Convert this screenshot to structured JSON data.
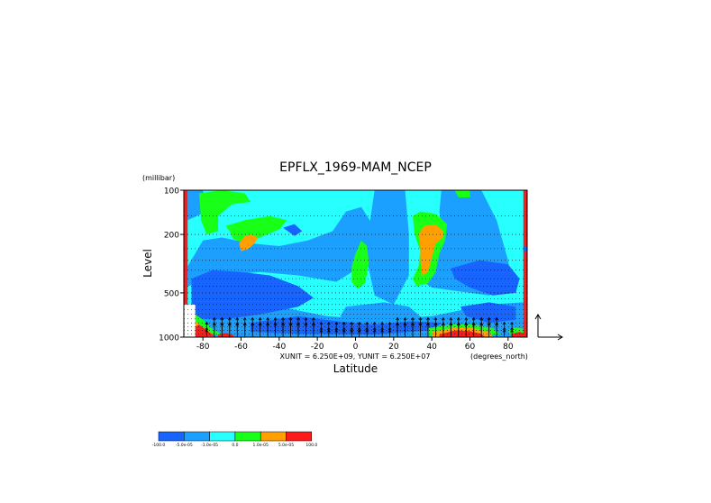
{
  "chart_data": {
    "type": "heatmap",
    "title": "EPFLX_1969-MAM_NCEP",
    "xlabel": "Latitude",
    "ylabel": "Level",
    "x_units": "(degrees_north)",
    "y_units": "(millibar)",
    "xlim": [
      -90,
      90
    ],
    "ylim": [
      1000,
      100
    ],
    "y_scale": "log",
    "x_ticks": [
      -80,
      -60,
      -40,
      -20,
      0,
      20,
      40,
      60,
      80
    ],
    "y_ticks": [
      100,
      200,
      500,
      1000
    ],
    "vector_scale_text": "XUNIT = 6.250E+09, YUNIT = 6.250E+07",
    "colorbar": {
      "colors": [
        "#1864ff",
        "#1ca0ff",
        "#28ffff",
        "#18ff18",
        "#ffa000",
        "#ff1a1a"
      ],
      "labels": [
        "-100.0",
        "-5.0e-05",
        "-1.0e-05",
        "0.0",
        "1.0e-05",
        "5.0e-05",
        "100.0"
      ]
    },
    "background_color": "#28ffff",
    "regions": [
      {
        "fill": "#1ca0ff",
        "points": [
          [
            -88,
            330
          ],
          [
            -80,
            220
          ],
          [
            -70,
            210
          ],
          [
            -55,
            230
          ],
          [
            -40,
            240
          ],
          [
            -25,
            220
          ],
          [
            -12,
            190
          ],
          [
            -5,
            140
          ],
          [
            3,
            130
          ],
          [
            10,
            180
          ],
          [
            8,
            300
          ],
          [
            -10,
            420
          ],
          [
            -30,
            380
          ],
          [
            -50,
            360
          ],
          [
            -70,
            380
          ],
          [
            -88,
            450
          ]
        ]
      },
      {
        "fill": "#1ca0ff",
        "points": [
          [
            -88,
            100
          ],
          [
            -80,
            100
          ],
          [
            -78,
            140
          ],
          [
            -88,
            160
          ]
        ]
      },
      {
        "fill": "#1ca0ff",
        "points": [
          [
            10,
            100
          ],
          [
            26,
            100
          ],
          [
            28,
            200
          ],
          [
            28,
            380
          ],
          [
            20,
            600
          ],
          [
            10,
            520
          ],
          [
            6,
            300
          ],
          [
            8,
            150
          ]
        ]
      },
      {
        "fill": "#1ca0ff",
        "points": [
          [
            45,
            100
          ],
          [
            66,
            100
          ],
          [
            74,
            160
          ],
          [
            80,
            300
          ],
          [
            82,
            440
          ],
          [
            70,
            520
          ],
          [
            40,
            460
          ],
          [
            33,
            400
          ],
          [
            38,
            300
          ],
          [
            46,
            220
          ],
          [
            44,
            140
          ]
        ]
      },
      {
        "fill": "#1ca0ff",
        "points": [
          [
            -5,
            620
          ],
          [
            15,
            580
          ],
          [
            28,
            620
          ],
          [
            36,
            760
          ],
          [
            20,
            900
          ],
          [
            0,
            860
          ],
          [
            -8,
            720
          ]
        ]
      },
      {
        "fill": "#1ca0ff",
        "points": [
          [
            -85,
            600
          ],
          [
            -60,
            580
          ],
          [
            -35,
            640
          ],
          [
            -15,
            720
          ],
          [
            10,
            760
          ],
          [
            40,
            720
          ],
          [
            70,
            600
          ],
          [
            88,
            580
          ],
          [
            88,
            1000
          ],
          [
            -85,
            1000
          ]
        ]
      },
      {
        "fill": "#1864ff",
        "points": [
          [
            -86,
            400
          ],
          [
            -75,
            350
          ],
          [
            -60,
            360
          ],
          [
            -45,
            380
          ],
          [
            -30,
            450
          ],
          [
            -22,
            540
          ],
          [
            -30,
            620
          ],
          [
            -50,
            700
          ],
          [
            -70,
            760
          ],
          [
            -86,
            740
          ]
        ]
      },
      {
        "fill": "#1864ff",
        "points": [
          [
            -55,
            800
          ],
          [
            -30,
            720
          ],
          [
            -10,
            780
          ],
          [
            10,
            820
          ],
          [
            30,
            780
          ],
          [
            45,
            800
          ],
          [
            40,
            900
          ],
          [
            10,
            960
          ],
          [
            -30,
            950
          ],
          [
            -55,
            920
          ]
        ]
      },
      {
        "fill": "#1864ff",
        "points": [
          [
            50,
            340
          ],
          [
            65,
            300
          ],
          [
            80,
            320
          ],
          [
            86,
            400
          ],
          [
            84,
            500
          ],
          [
            72,
            520
          ],
          [
            60,
            460
          ],
          [
            52,
            400
          ]
        ]
      },
      {
        "fill": "#1864ff",
        "points": [
          [
            55,
            620
          ],
          [
            70,
            580
          ],
          [
            84,
            620
          ],
          [
            84,
            760
          ],
          [
            70,
            800
          ],
          [
            58,
            720
          ]
        ]
      },
      {
        "fill": "#1864ff",
        "points": [
          [
            -38,
            180
          ],
          [
            -32,
            170
          ],
          [
            -28,
            190
          ],
          [
            -32,
            205
          ]
        ]
      },
      {
        "fill": "#18ff18",
        "points": [
          [
            -82,
            105
          ],
          [
            -70,
            100
          ],
          [
            -58,
            105
          ],
          [
            -55,
            120
          ],
          [
            -65,
            125
          ],
          [
            -72,
            150
          ],
          [
            -72,
            190
          ],
          [
            -78,
            200
          ],
          [
            -81,
            160
          ]
        ]
      },
      {
        "fill": "#18ff18",
        "points": [
          [
            -68,
            175
          ],
          [
            -58,
            160
          ],
          [
            -45,
            150
          ],
          [
            -36,
            160
          ],
          [
            -40,
            185
          ],
          [
            -50,
            210
          ],
          [
            -58,
            230
          ],
          [
            -64,
            215
          ],
          [
            -66,
            190
          ]
        ]
      },
      {
        "fill": "#18ff18",
        "points": [
          [
            0,
            270
          ],
          [
            3,
            220
          ],
          [
            6,
            240
          ],
          [
            7,
            310
          ],
          [
            5,
            430
          ],
          [
            1,
            470
          ],
          [
            -2,
            420
          ],
          [
            -2,
            330
          ]
        ]
      },
      {
        "fill": "#18ff18",
        "points": [
          [
            30,
            150
          ],
          [
            34,
            140
          ],
          [
            42,
            145
          ],
          [
            48,
            170
          ],
          [
            47,
            220
          ],
          [
            44,
            270
          ],
          [
            42,
            360
          ],
          [
            38,
            430
          ],
          [
            32,
            450
          ],
          [
            30,
            400
          ],
          [
            33,
            330
          ],
          [
            34,
            260
          ],
          [
            31,
            200
          ]
        ]
      },
      {
        "fill": "#18ff18",
        "points": [
          [
            52,
            100
          ],
          [
            60,
            100
          ],
          [
            60,
            112
          ],
          [
            54,
            112
          ]
        ]
      },
      {
        "fill": "#18ff18",
        "points": [
          [
            -88,
            720
          ],
          [
            -84,
            700
          ],
          [
            -80,
            760
          ],
          [
            -76,
            860
          ],
          [
            -70,
            960
          ],
          [
            -88,
            1000
          ]
        ]
      },
      {
        "fill": "#18ff18",
        "points": [
          [
            38,
            870
          ],
          [
            50,
            820
          ],
          [
            62,
            820
          ],
          [
            72,
            870
          ],
          [
            76,
            960
          ],
          [
            38,
            980
          ]
        ]
      },
      {
        "fill": "#18ff18",
        "points": [
          [
            80,
            900
          ],
          [
            84,
            860
          ],
          [
            88,
            880
          ],
          [
            88,
            1000
          ],
          [
            82,
            1000
          ]
        ]
      },
      {
        "fill": "#ffa000",
        "points": [
          [
            -61,
            230
          ],
          [
            -58,
            205
          ],
          [
            -55,
            200
          ],
          [
            -51,
            210
          ],
          [
            -53,
            230
          ],
          [
            -56,
            250
          ],
          [
            -60,
            260
          ]
        ]
      },
      {
        "fill": "#ffa000",
        "points": [
          [
            33,
            200
          ],
          [
            36,
            175
          ],
          [
            42,
            172
          ],
          [
            46,
            190
          ],
          [
            46,
            210
          ],
          [
            42,
            230
          ],
          [
            40,
            290
          ],
          [
            38,
            360
          ],
          [
            35,
            380
          ],
          [
            34,
            310
          ],
          [
            34,
            250
          ]
        ]
      },
      {
        "fill": "#ffa000",
        "points": [
          [
            -88,
            820
          ],
          [
            -84,
            780
          ],
          [
            -80,
            860
          ],
          [
            -75,
            950
          ],
          [
            -88,
            1000
          ]
        ]
      },
      {
        "fill": "#ffa000",
        "points": [
          [
            40,
            920
          ],
          [
            52,
            860
          ],
          [
            62,
            870
          ],
          [
            70,
            920
          ],
          [
            72,
            990
          ],
          [
            40,
            1000
          ]
        ]
      },
      {
        "fill": "#ff1a1a",
        "points": [
          [
            -86,
            880
          ],
          [
            -82,
            820
          ],
          [
            -78,
            900
          ],
          [
            -74,
            980
          ],
          [
            -86,
            1000
          ]
        ]
      },
      {
        "fill": "#ff1a1a",
        "points": [
          [
            44,
            960
          ],
          [
            52,
            900
          ],
          [
            60,
            910
          ],
          [
            66,
            950
          ],
          [
            68,
            1000
          ],
          [
            44,
            1000
          ]
        ]
      },
      {
        "fill": "#ff1a1a",
        "points": [
          [
            -72,
            960
          ],
          [
            -68,
            940
          ],
          [
            -64,
            970
          ],
          [
            -64,
            1000
          ],
          [
            -72,
            1000
          ]
        ]
      },
      {
        "fill": "#ff1a1a",
        "points": [
          [
            82,
            950
          ],
          [
            86,
            920
          ],
          [
            88,
            940
          ],
          [
            88,
            1000
          ],
          [
            82,
            1000
          ]
        ]
      }
    ],
    "edge_bands": [
      {
        "fill": "#ff1a1a",
        "lat_from": -90,
        "lat_to": -88,
        "p_from": 100,
        "p_to": 700
      },
      {
        "fill": "#ff1a1a",
        "lat_from": 88,
        "lat_to": 90,
        "p_from": 100,
        "p_to": 1000
      },
      {
        "fill": "#1864ff",
        "lat_from": 88,
        "lat_to": 90,
        "p_from": 240,
        "p_to": 260
      }
    ],
    "missing_region": {
      "lat_from": -90,
      "lat_to": -84,
      "p_from": 600,
      "p_to": 1000
    }
  }
}
